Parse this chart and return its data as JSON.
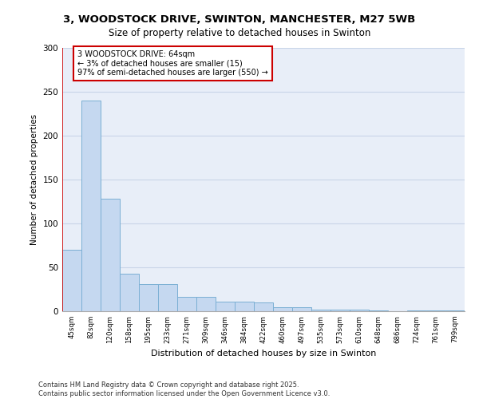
{
  "title_line1": "3, WOODSTOCK DRIVE, SWINTON, MANCHESTER, M27 5WB",
  "title_line2": "Size of property relative to detached houses in Swinton",
  "xlabel": "Distribution of detached houses by size in Swinton",
  "ylabel": "Number of detached properties",
  "footer": "Contains HM Land Registry data © Crown copyright and database right 2025.\nContains public sector information licensed under the Open Government Licence v3.0.",
  "categories": [
    "45sqm",
    "82sqm",
    "120sqm",
    "158sqm",
    "195sqm",
    "233sqm",
    "271sqm",
    "309sqm",
    "346sqm",
    "384sqm",
    "422sqm",
    "460sqm",
    "497sqm",
    "535sqm",
    "573sqm",
    "610sqm",
    "648sqm",
    "686sqm",
    "724sqm",
    "761sqm",
    "799sqm"
  ],
  "values": [
    70,
    240,
    128,
    43,
    31,
    31,
    16,
    16,
    11,
    11,
    10,
    5,
    5,
    2,
    2,
    2,
    1,
    0,
    1,
    1,
    1
  ],
  "bar_color": "#c5d8f0",
  "bar_edge_color": "#7bafd4",
  "grid_color": "#c8d4e8",
  "plot_bg_color": "#e8eef8",
  "fig_bg_color": "#ffffff",
  "annotation_text": "3 WOODSTOCK DRIVE: 64sqm\n← 3% of detached houses are smaller (15)\n97% of semi-detached houses are larger (550) →",
  "annotation_box_facecolor": "#ffffff",
  "annotation_box_edgecolor": "#cc0000",
  "vline_color": "#cc0000",
  "ylim": [
    0,
    300
  ],
  "yticks": [
    0,
    50,
    100,
    150,
    200,
    250,
    300
  ]
}
